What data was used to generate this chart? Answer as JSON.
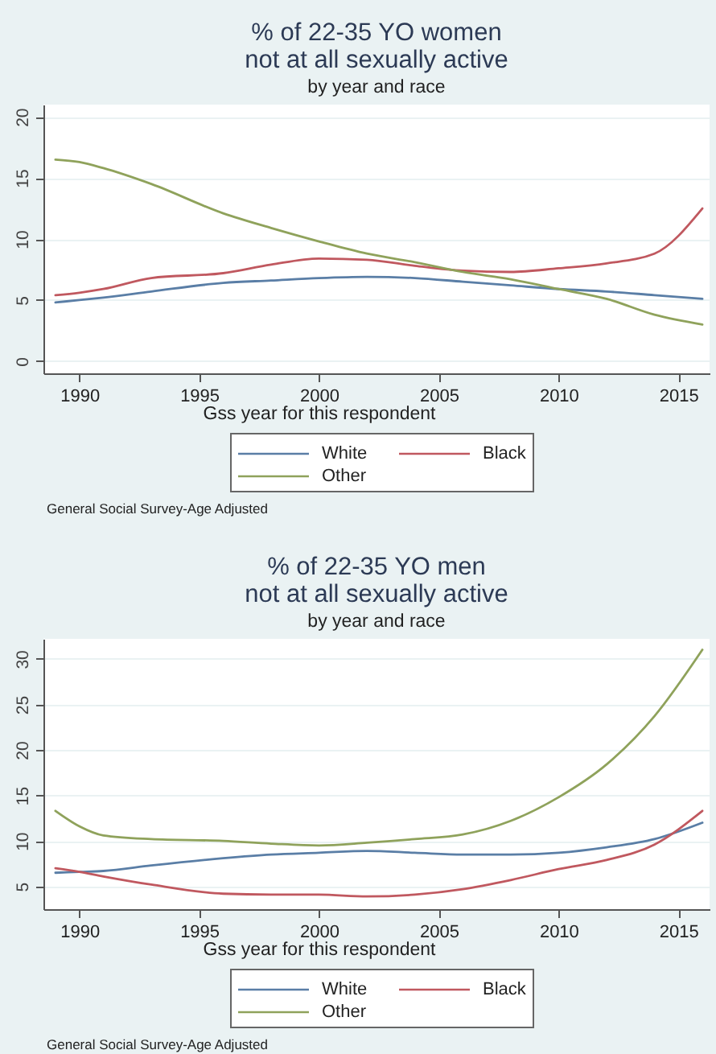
{
  "chart_data": [
    {
      "type": "line",
      "title": "% of 22-35 YO women\nnot at all sexually active",
      "subtitle": "by year and race",
      "xlabel": "Gss year for this respondent",
      "annotations": [
        "General Social Survey-Age Adjusted"
      ],
      "x": [
        1989,
        1990,
        1991,
        1993,
        1996,
        1998,
        2000,
        2002,
        2004,
        2006,
        2008,
        2010,
        2012,
        2014,
        2016
      ],
      "series": [
        {
          "name": "White",
          "color": "#5a7ea6",
          "values": [
            4.8,
            5.0,
            5.2,
            5.7,
            6.4,
            6.6,
            6.8,
            6.9,
            6.8,
            6.5,
            6.2,
            5.9,
            5.7,
            5.4,
            5.1
          ]
        },
        {
          "name": "Black",
          "color": "#c0585f",
          "values": [
            5.4,
            5.6,
            5.9,
            6.8,
            7.2,
            7.9,
            8.4,
            8.3,
            7.8,
            7.4,
            7.3,
            7.6,
            8.0,
            8.8,
            12.5
          ]
        },
        {
          "name": "Other",
          "color": "#8fa25b",
          "values": [
            16.5,
            16.3,
            15.8,
            14.5,
            12.1,
            10.9,
            9.8,
            8.8,
            8.1,
            7.3,
            6.7,
            5.9,
            5.1,
            3.8,
            3.0
          ]
        }
      ],
      "xlim": [
        1988.5,
        2016.3
      ],
      "ylim": [
        -1,
        21
      ],
      "xticks": [
        1990,
        1995,
        2000,
        2005,
        2010,
        2015
      ],
      "yticks": [
        0,
        5,
        10,
        15,
        20
      ],
      "grid": "y",
      "legend": "bottom"
    },
    {
      "type": "line",
      "title": "% of 22-35 YO men\nnot at all sexually active",
      "subtitle": "by year and race",
      "xlabel": "Gss year for this respondent",
      "annotations": [
        "General Social Survey-Age Adjusted"
      ],
      "x": [
        1989,
        1990,
        1991,
        1993,
        1996,
        1998,
        2000,
        2002,
        2004,
        2006,
        2008,
        2010,
        2012,
        2014,
        2016
      ],
      "series": [
        {
          "name": "White",
          "color": "#5a7ea6",
          "values": [
            6.5,
            6.6,
            6.7,
            7.3,
            8.1,
            8.5,
            8.7,
            8.9,
            8.7,
            8.5,
            8.5,
            8.7,
            9.3,
            10.2,
            12.0
          ]
        },
        {
          "name": "Black",
          "color": "#c0585f",
          "values": [
            7.0,
            6.6,
            6.1,
            5.2,
            4.2,
            4.1,
            4.1,
            3.9,
            4.1,
            4.7,
            5.7,
            6.9,
            7.9,
            9.6,
            13.3
          ]
        },
        {
          "name": "Other",
          "color": "#8fa25b",
          "values": [
            13.3,
            11.6,
            10.6,
            10.2,
            10.0,
            9.7,
            9.5,
            9.8,
            10.2,
            10.7,
            12.2,
            14.8,
            18.4,
            23.7,
            31.0
          ]
        }
      ],
      "xlim": [
        1988.5,
        2016.3
      ],
      "ylim": [
        2.5,
        32.2
      ],
      "xticks": [
        1990,
        1995,
        2000,
        2005,
        2010,
        2015
      ],
      "yticks": [
        5,
        10,
        15,
        20,
        25,
        30
      ],
      "grid": "y",
      "legend": "bottom"
    }
  ]
}
